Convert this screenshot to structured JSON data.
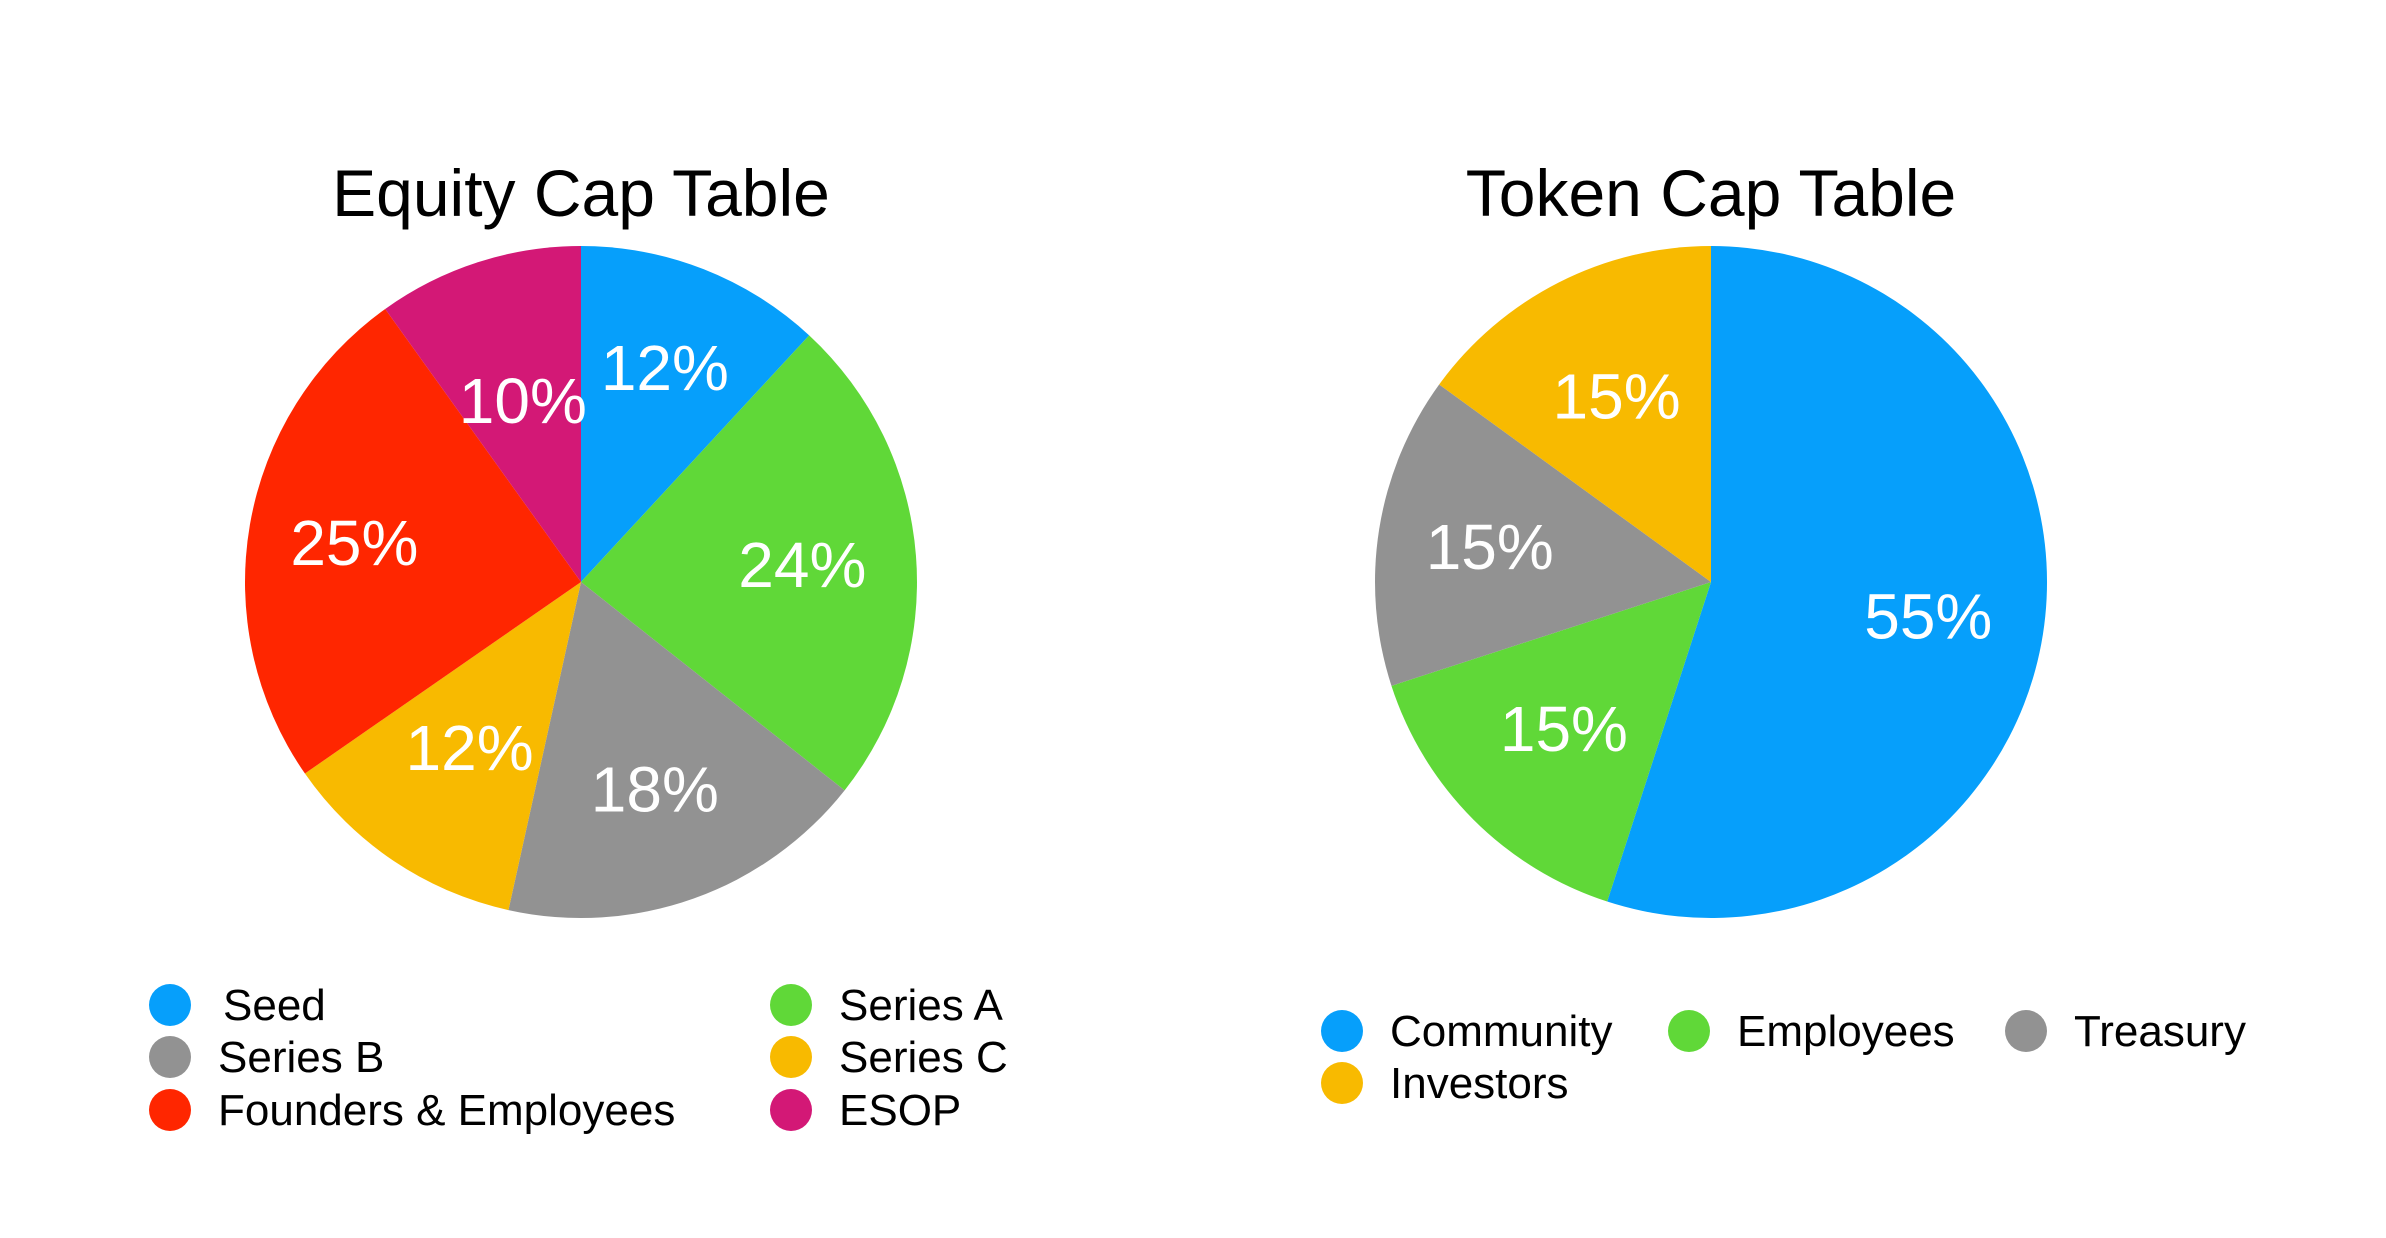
{
  "chart_data": [
    {
      "type": "pie",
      "title": "Equity Cap Table",
      "categories": [
        "Seed",
        "Series A",
        "Series B",
        "Series C",
        "Founders & Employees",
        "ESOP"
      ],
      "values": [
        12,
        24,
        18,
        12,
        25,
        10
      ],
      "data_labels": [
        "12%",
        "24%",
        "18%",
        "12%",
        "25%",
        "10%"
      ],
      "colors": [
        "#069ffb",
        "#60d838",
        "#929292",
        "#f8ba00",
        "#ff2600",
        "#d31876"
      ],
      "start_angle_deg": 0,
      "direction": "clockwise",
      "legend": {
        "position": "bottom",
        "columns": [
          [
            "Seed",
            "Series B",
            "Founders & Employees"
          ],
          [
            "Series A",
            "Series C",
            "ESOP"
          ]
        ]
      }
    },
    {
      "type": "pie",
      "title": "Token Cap Table",
      "categories": [
        "Community",
        "Employees",
        "Treasury",
        "Investors"
      ],
      "values": [
        55,
        15,
        15,
        15
      ],
      "data_labels": [
        "55%",
        "15%",
        "15%",
        "15%"
      ],
      "colors": [
        "#069ffb",
        "#60d838",
        "#929292",
        "#f8ba00"
      ],
      "start_angle_deg": 0,
      "direction": "clockwise",
      "legend": {
        "position": "bottom",
        "rows": [
          [
            "Community",
            "Employees",
            "Treasury"
          ],
          [
            "Investors"
          ]
        ]
      }
    }
  ]
}
